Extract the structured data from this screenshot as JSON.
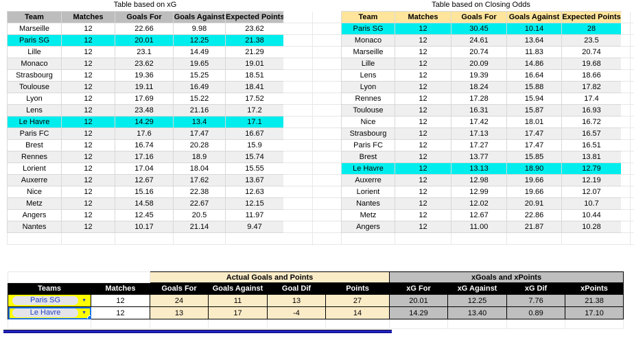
{
  "xg_table": {
    "title": "Table based on xG",
    "headers": [
      "Team",
      "Matches",
      "Goals For",
      "Goals Against",
      "Expected Points"
    ],
    "rows": [
      {
        "team": "Marseille",
        "matches": "12",
        "goals_for": "22.66",
        "goals_against": "9.98",
        "expected_points": "23.62",
        "highlight": false
      },
      {
        "team": "Paris SG",
        "matches": "12",
        "goals_for": "20.01",
        "goals_against": "12.25",
        "expected_points": "21.38",
        "highlight": true
      },
      {
        "team": "Lille",
        "matches": "12",
        "goals_for": "23.1",
        "goals_against": "14.49",
        "expected_points": "21.29",
        "highlight": false
      },
      {
        "team": "Monaco",
        "matches": "12",
        "goals_for": "23.62",
        "goals_against": "19.65",
        "expected_points": "19.01",
        "highlight": false
      },
      {
        "team": "Strasbourg",
        "matches": "12",
        "goals_for": "19.36",
        "goals_against": "15.25",
        "expected_points": "18.51",
        "highlight": false
      },
      {
        "team": "Toulouse",
        "matches": "12",
        "goals_for": "19.11",
        "goals_against": "16.49",
        "expected_points": "18.41",
        "highlight": false
      },
      {
        "team": "Lyon",
        "matches": "12",
        "goals_for": "17.69",
        "goals_against": "15.22",
        "expected_points": "17.52",
        "highlight": false
      },
      {
        "team": "Lens",
        "matches": "12",
        "goals_for": "23.48",
        "goals_against": "21.16",
        "expected_points": "17.2",
        "highlight": false
      },
      {
        "team": "Le Havre",
        "matches": "12",
        "goals_for": "14.29",
        "goals_against": "13.4",
        "expected_points": "17.1",
        "highlight": true
      },
      {
        "team": "Paris FC",
        "matches": "12",
        "goals_for": "17.6",
        "goals_against": "17.47",
        "expected_points": "16.67",
        "highlight": false
      },
      {
        "team": "Brest",
        "matches": "12",
        "goals_for": "16.74",
        "goals_against": "20.28",
        "expected_points": "15.9",
        "highlight": false
      },
      {
        "team": "Rennes",
        "matches": "12",
        "goals_for": "17.16",
        "goals_against": "18.9",
        "expected_points": "15.74",
        "highlight": false
      },
      {
        "team": "Lorient",
        "matches": "12",
        "goals_for": "17.04",
        "goals_against": "18.04",
        "expected_points": "15.55",
        "highlight": false
      },
      {
        "team": "Auxerre",
        "matches": "12",
        "goals_for": "12.67",
        "goals_against": "17.62",
        "expected_points": "13.67",
        "highlight": false
      },
      {
        "team": "Nice",
        "matches": "12",
        "goals_for": "15.16",
        "goals_against": "22.38",
        "expected_points": "12.63",
        "highlight": false
      },
      {
        "team": "Metz",
        "matches": "12",
        "goals_for": "14.58",
        "goals_against": "22.67",
        "expected_points": "12.15",
        "highlight": false
      },
      {
        "team": "Angers",
        "matches": "12",
        "goals_for": "12.45",
        "goals_against": "20.5",
        "expected_points": "11.97",
        "highlight": false
      },
      {
        "team": "Nantes",
        "matches": "12",
        "goals_for": "10.17",
        "goals_against": "21.14",
        "expected_points": "9.47",
        "highlight": false
      }
    ]
  },
  "odds_table": {
    "title": "Table based on Closing Odds",
    "headers": [
      "Team",
      "Matches",
      "Goals For",
      "Goals Against",
      "Expected Points"
    ],
    "rows": [
      {
        "team": "Paris SG",
        "matches": "12",
        "goals_for": "30.45",
        "goals_against": "10.14",
        "expected_points": "28",
        "highlight": true
      },
      {
        "team": "Monaco",
        "matches": "12",
        "goals_for": "24.61",
        "goals_against": "13.64",
        "expected_points": "23.5",
        "highlight": false
      },
      {
        "team": "Marseille",
        "matches": "12",
        "goals_for": "20.74",
        "goals_against": "11.83",
        "expected_points": "20.74",
        "highlight": false
      },
      {
        "team": "Lille",
        "matches": "12",
        "goals_for": "20.09",
        "goals_against": "14.86",
        "expected_points": "19.68",
        "highlight": false
      },
      {
        "team": "Lens",
        "matches": "12",
        "goals_for": "19.39",
        "goals_against": "16.64",
        "expected_points": "18.66",
        "highlight": false
      },
      {
        "team": "Lyon",
        "matches": "12",
        "goals_for": "18.24",
        "goals_against": "15.88",
        "expected_points": "17.82",
        "highlight": false
      },
      {
        "team": "Rennes",
        "matches": "12",
        "goals_for": "17.28",
        "goals_against": "15.94",
        "expected_points": "17.4",
        "highlight": false
      },
      {
        "team": "Toulouse",
        "matches": "12",
        "goals_for": "16.31",
        "goals_against": "15.87",
        "expected_points": "16.93",
        "highlight": false
      },
      {
        "team": "Nice",
        "matches": "12",
        "goals_for": "17.42",
        "goals_against": "18.01",
        "expected_points": "16.72",
        "highlight": false
      },
      {
        "team": "Strasbourg",
        "matches": "12",
        "goals_for": "17.13",
        "goals_against": "17.47",
        "expected_points": "16.57",
        "highlight": false
      },
      {
        "team": "Paris FC",
        "matches": "12",
        "goals_for": "17.27",
        "goals_against": "17.47",
        "expected_points": "16.51",
        "highlight": false
      },
      {
        "team": "Brest",
        "matches": "12",
        "goals_for": "13.77",
        "goals_against": "15.85",
        "expected_points": "13.81",
        "highlight": false
      },
      {
        "team": "Le Havre",
        "matches": "12",
        "goals_for": "13.13",
        "goals_against": "18.90",
        "expected_points": "12.79",
        "highlight": true
      },
      {
        "team": "Auxerre",
        "matches": "12",
        "goals_for": "12.98",
        "goals_against": "19.66",
        "expected_points": "12.19",
        "highlight": false
      },
      {
        "team": "Lorient",
        "matches": "12",
        "goals_for": "12.99",
        "goals_against": "19.66",
        "expected_points": "12.07",
        "highlight": false
      },
      {
        "team": "Nantes",
        "matches": "12",
        "goals_for": "12.02",
        "goals_against": "20.91",
        "expected_points": "10.7",
        "highlight": false
      },
      {
        "team": "Metz",
        "matches": "12",
        "goals_for": "12.67",
        "goals_against": "22.86",
        "expected_points": "10.44",
        "highlight": false
      },
      {
        "team": "Angers",
        "matches": "12",
        "goals_for": "11.00",
        "goals_against": "21.87",
        "expected_points": "10.28",
        "highlight": false
      }
    ]
  },
  "comparison": {
    "group_headers": [
      "Actual Goals and Points",
      "xGoals and xPoints"
    ],
    "headers": [
      "Teams",
      "Matches",
      "Goals For",
      "Goals Against",
      "Goal Dif",
      "Points",
      "xG For",
      "xG Against",
      "xG Dif",
      "xPoints"
    ],
    "rows": [
      {
        "team": "Paris SG",
        "matches": "12",
        "goals_for": "24",
        "goals_against": "11",
        "goal_dif": "13",
        "points": "27",
        "xg_for": "20.01",
        "xg_against": "12.25",
        "xg_dif": "7.76",
        "xpoints": "21.38",
        "selected": false
      },
      {
        "team": "Le Havre",
        "matches": "12",
        "goals_for": "13",
        "goals_against": "17",
        "goal_dif": "-4",
        "points": "14",
        "xg_for": "14.29",
        "xg_against": "13.40",
        "xg_dif": "0.89",
        "xpoints": "17.10",
        "selected": true
      }
    ],
    "dropdown_arrow_icon": "▼"
  },
  "colors": {
    "highlight_cyan": "#00EDED",
    "xg_header_gray": "#BDBDBD",
    "odds_header_tan": "#FFE59B",
    "band_gray": "#EFEFEF",
    "actual_cream": "#FBECC8",
    "xstats_gray": "#BFBFBF",
    "header_black": "#000000",
    "team_cell_yellow": "#FFFF00",
    "chip_text_blue": "#2441C8",
    "selection_blue": "#1A73E8",
    "divider_blue": "#2323C3"
  }
}
